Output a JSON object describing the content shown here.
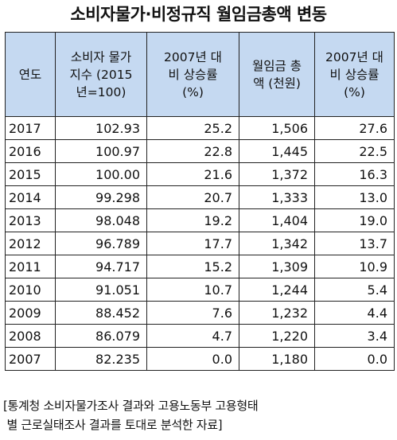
{
  "title": "소비자물가·비정규직 월임금총액 변동",
  "table": {
    "headers": [
      "연도",
      "소비자 물가\n지수 (2015\n년=100)",
      "2007년 대\n비 상승률\n(%)",
      "월임금 총\n액 (천원)",
      "2007년 대\n비 상승률\n(%)"
    ],
    "rows": [
      [
        "2017",
        "102.93",
        "25.2",
        "1,506",
        "27.6"
      ],
      [
        "2016",
        "100.97",
        "22.8",
        "1,445",
        "22.5"
      ],
      [
        "2015",
        "100.00",
        "21.6",
        "1,372",
        "16.3"
      ],
      [
        "2014",
        "99.298",
        "20.7",
        "1,333",
        "13.0"
      ],
      [
        "2013",
        "98.048",
        "19.2",
        "1,404",
        "19.0"
      ],
      [
        "2012",
        "96.789",
        "17.7",
        "1,342",
        "13.7"
      ],
      [
        "2011",
        "94.717",
        "15.2",
        "1,309",
        "10.9"
      ],
      [
        "2010",
        "91.051",
        "10.7",
        "1,244",
        "5.4"
      ],
      [
        "2009",
        "88.452",
        "7.6",
        "1,232",
        "4.4"
      ],
      [
        "2008",
        "86.079",
        "4.7",
        "1,220",
        "3.4"
      ],
      [
        "2007",
        "82.235",
        "0.0",
        "1,180",
        "0.0"
      ]
    ]
  },
  "source": "[통계청 소비자물가조사 결과와 고용노동부 고용형태\n 별 근로실태조사 결과를 토대로 분석한 자료]"
}
